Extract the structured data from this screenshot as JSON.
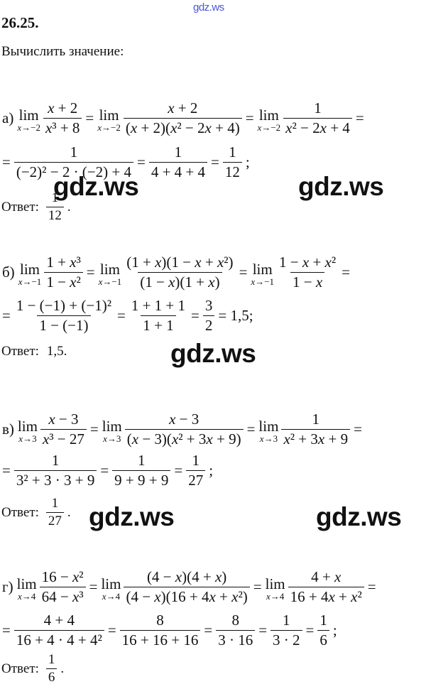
{
  "watermark_top": "gdz.ws",
  "watermarks": [
    "gdz.ws",
    "gdz.ws",
    "gdz.ws",
    "gdz.ws",
    "gdz.ws"
  ],
  "title": "26.25.",
  "task": "Вычислить значение:",
  "answer_label": "Ответ:",
  "parts": [
    {
      "lines": [
        [
          {
            "t": "а)"
          },
          {
            "lim": "x→−2"
          },
          {
            "n": "x + 2",
            "d": "x³ + 8"
          },
          {
            "t": "="
          },
          {
            "lim": "x→−2"
          },
          {
            "n": "x + 2",
            "d": "(x + 2)(x² − 2x + 4)"
          },
          {
            "t": "="
          },
          {
            "lim": "x→−2"
          },
          {
            "n": "1",
            "d": "x² − 2x + 4"
          },
          {
            "t": "="
          }
        ],
        [
          {
            "t": "="
          },
          {
            "n": "1",
            "d": "(−2)² − 2 · (−2) + 4"
          },
          {
            "t": "="
          },
          {
            "n": "1",
            "d": "4 + 4 + 4"
          },
          {
            "t": "="
          },
          {
            "n": "1",
            "d": "12"
          },
          {
            "t": ";"
          }
        ]
      ],
      "answer": [
        {
          "n": "1",
          "d": "12"
        },
        {
          "t": "."
        }
      ]
    },
    {
      "lines": [
        [
          {
            "t": "б)"
          },
          {
            "lim": "x→−1"
          },
          {
            "n": "1 + x³",
            "d": "1 − x²"
          },
          {
            "t": "="
          },
          {
            "lim": "x→−1"
          },
          {
            "n": "(1 + x)(1 − x + x²)",
            "d": "(1 − x)(1 + x)"
          },
          {
            "t": "="
          },
          {
            "lim": "x→−1"
          },
          {
            "n": "1 − x + x²",
            "d": "1 − x"
          },
          {
            "t": "="
          }
        ],
        [
          {
            "t": "="
          },
          {
            "n": "1 − (−1) + (−1)²",
            "d": "1 − (−1)"
          },
          {
            "t": "="
          },
          {
            "n": "1 + 1 + 1",
            "d": "1 + 1"
          },
          {
            "t": "="
          },
          {
            "n": "3",
            "d": "2"
          },
          {
            "t": "= 1,5;"
          }
        ]
      ],
      "answer": [
        {
          "t": "1,5."
        }
      ]
    },
    {
      "lines": [
        [
          {
            "t": "в)"
          },
          {
            "lim": "x→3"
          },
          {
            "n": "x − 3",
            "d": "x³ − 27"
          },
          {
            "t": "="
          },
          {
            "lim": "x→3"
          },
          {
            "n": "x − 3",
            "d": "(x − 3)(x² + 3x + 9)"
          },
          {
            "t": "="
          },
          {
            "lim": "x→3"
          },
          {
            "n": "1",
            "d": "x² + 3x + 9"
          },
          {
            "t": "="
          }
        ],
        [
          {
            "t": "="
          },
          {
            "n": "1",
            "d": "3² + 3 · 3 + 9"
          },
          {
            "t": "="
          },
          {
            "n": "1",
            "d": "9 + 9 + 9"
          },
          {
            "t": "="
          },
          {
            "n": "1",
            "d": "27"
          },
          {
            "t": ";"
          }
        ]
      ],
      "answer": [
        {
          "n": "1",
          "d": "27"
        },
        {
          "t": "."
        }
      ]
    },
    {
      "lines": [
        [
          {
            "t": "г)"
          },
          {
            "lim": "x→4"
          },
          {
            "n": "16 − x²",
            "d": "64 − x³"
          },
          {
            "t": "="
          },
          {
            "lim": "x→4"
          },
          {
            "n": "(4 − x)(4 + x)",
            "d": "(4 − x)(16 + 4x + x²)"
          },
          {
            "t": "="
          },
          {
            "lim": "x→4"
          },
          {
            "n": "4 + x",
            "d": "16 + 4x + x²"
          },
          {
            "t": "="
          }
        ],
        [
          {
            "t": "="
          },
          {
            "n": "4 + 4",
            "d": "16 + 4 · 4 + 4²"
          },
          {
            "t": "="
          },
          {
            "n": "8",
            "d": "16 + 16 + 16"
          },
          {
            "t": "="
          },
          {
            "n": "8",
            "d": "3 · 16"
          },
          {
            "t": "="
          },
          {
            "n": "1",
            "d": "3 · 2"
          },
          {
            "t": "="
          },
          {
            "n": "1",
            "d": "6"
          },
          {
            "t": ";"
          }
        ]
      ],
      "answer": [
        {
          "n": "1",
          "d": "6"
        },
        {
          "t": "."
        }
      ]
    }
  ]
}
